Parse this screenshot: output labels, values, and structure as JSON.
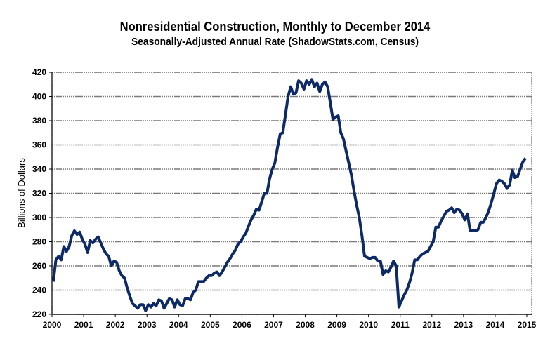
{
  "chart_data": {
    "type": "line",
    "title": "Nonresidential Construction, Monthly to December 2014",
    "subtitle": "Seasonally-Adjusted Annual Rate (ShadowStats.com, Census)",
    "xlabel": "",
    "ylabel": "Billions  of Dollars",
    "xlim": [
      2000,
      2015
    ],
    "ylim": [
      220,
      420
    ],
    "grid": true,
    "line_color": "#0d2a66",
    "x_ticks": [
      "2000",
      "2001",
      "2002",
      "2003",
      "2004",
      "2005",
      "2006",
      "2007",
      "2008",
      "2009",
      "2010",
      "2011",
      "2012",
      "2013",
      "2014",
      "2015"
    ],
    "y_ticks": [
      "220",
      "240",
      "260",
      "280",
      "300",
      "320",
      "340",
      "360",
      "380",
      "400",
      "420"
    ],
    "series": [
      {
        "name": "Nonresidential Construction",
        "start": "2000-01",
        "frequency": "monthly",
        "values": [
          247,
          265,
          268,
          265,
          276,
          272,
          276,
          285,
          289,
          286,
          288,
          282,
          278,
          271,
          281,
          279,
          282,
          284,
          279,
          274,
          270,
          268,
          260,
          264,
          263,
          256,
          252,
          250,
          242,
          235,
          229,
          227,
          225,
          228,
          228,
          223,
          228,
          226,
          229,
          227,
          232,
          231,
          225,
          229,
          233,
          232,
          226,
          232,
          228,
          227,
          233,
          233,
          232,
          238,
          240,
          247,
          247,
          247,
          250,
          252,
          252,
          254,
          255,
          252,
          255,
          259,
          263,
          266,
          270,
          273,
          278,
          280,
          284,
          287,
          293,
          298,
          302,
          307,
          306,
          313,
          320,
          320,
          332,
          340,
          345,
          358,
          369,
          370,
          385,
          400,
          408,
          402,
          403,
          413,
          411,
          406,
          413,
          410,
          414,
          408,
          411,
          404,
          410,
          412,
          408,
          395,
          381,
          383,
          384,
          370,
          365,
          355,
          345,
          335,
          322,
          310,
          300,
          285,
          268,
          267,
          266,
          267,
          267,
          264,
          264,
          253,
          256,
          255,
          259,
          264,
          260,
          226,
          231,
          236,
          240,
          246,
          254,
          265,
          265,
          268,
          270,
          271,
          272,
          276,
          280,
          292,
          292,
          297,
          301,
          305,
          306,
          308,
          304,
          307,
          306,
          303,
          298,
          303,
          289,
          289,
          289,
          290,
          296,
          296,
          300,
          305,
          312,
          320,
          328,
          331,
          330,
          328,
          324,
          327,
          339,
          333,
          334,
          340,
          346,
          349
        ]
      }
    ]
  }
}
